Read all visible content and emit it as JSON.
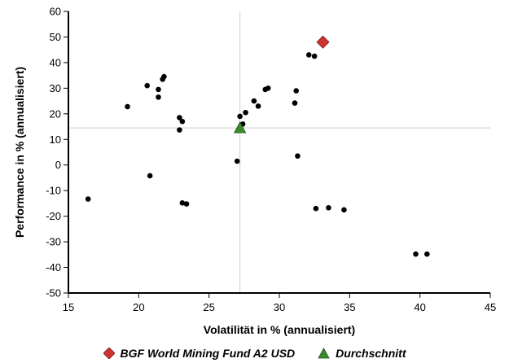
{
  "chart_data": {
    "type": "scatter",
    "xlabel": "Volatilität in % (annualisiert)",
    "ylabel": "Performance in % (annualisiert)",
    "xlim": [
      15,
      45
    ],
    "ylim": [
      -50,
      60
    ],
    "x_ticks": [
      "15",
      "20",
      "25",
      "30",
      "35",
      "40",
      "45"
    ],
    "y_ticks": [
      "60",
      "50",
      "40",
      "30",
      "20",
      "10",
      "0",
      "-10",
      "-20",
      "-30",
      "-40",
      "-50"
    ],
    "grid": false,
    "legend_position": "bottom",
    "crosshair": {
      "x": 27.2,
      "y": 14.5
    },
    "series": [
      {
        "name": "BGF World Mining Fund A2 USD",
        "marker": "diamond",
        "color": "#cc3333",
        "points": [
          {
            "x": 33.1,
            "y": 48.0
          }
        ]
      },
      {
        "name": "Durchschnitt",
        "marker": "triangle",
        "color": "#3a8a2a",
        "points": [
          {
            "x": 27.2,
            "y": 14.5
          }
        ]
      },
      {
        "marker": "dot",
        "color": "#000000",
        "points": [
          {
            "x": 16.4,
            "y": -13.3
          },
          {
            "x": 19.2,
            "y": 22.8
          },
          {
            "x": 20.6,
            "y": 31.0
          },
          {
            "x": 20.8,
            "y": -4.2
          },
          {
            "x": 21.4,
            "y": 29.5
          },
          {
            "x": 21.4,
            "y": 26.5
          },
          {
            "x": 21.7,
            "y": 33.5
          },
          {
            "x": 21.8,
            "y": 34.5
          },
          {
            "x": 22.9,
            "y": 18.5
          },
          {
            "x": 22.9,
            "y": 13.7
          },
          {
            "x": 23.1,
            "y": 17.0
          },
          {
            "x": 23.1,
            "y": -14.8
          },
          {
            "x": 23.4,
            "y": -15.2
          },
          {
            "x": 27.0,
            "y": 1.5
          },
          {
            "x": 27.2,
            "y": 19.0
          },
          {
            "x": 27.4,
            "y": 16.0
          },
          {
            "x": 27.6,
            "y": 20.5
          },
          {
            "x": 28.2,
            "y": 25.0
          },
          {
            "x": 28.5,
            "y": 23.0
          },
          {
            "x": 29.0,
            "y": 29.5
          },
          {
            "x": 29.2,
            "y": 30.0
          },
          {
            "x": 31.1,
            "y": 24.2
          },
          {
            "x": 31.2,
            "y": 29.0
          },
          {
            "x": 31.3,
            "y": 3.5
          },
          {
            "x": 32.1,
            "y": 43.0
          },
          {
            "x": 32.5,
            "y": 42.5
          },
          {
            "x": 32.6,
            "y": -17.0
          },
          {
            "x": 33.5,
            "y": -16.7
          },
          {
            "x": 34.6,
            "y": -17.5
          },
          {
            "x": 39.7,
            "y": -34.8
          },
          {
            "x": 40.5,
            "y": -34.8
          }
        ]
      }
    ]
  },
  "legend": {
    "fund_label": "BGF World Mining Fund A2 USD",
    "average_label": "Durchschnitt"
  }
}
